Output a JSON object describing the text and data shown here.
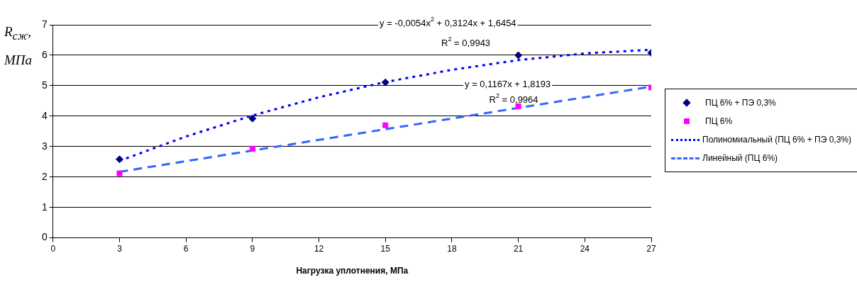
{
  "chart_data": {
    "type": "scatter",
    "xlabel": "Нагрузка уплотнения, МПа",
    "ylabel": "R$_{сж}$, МПа",
    "xlim": [
      0,
      27
    ],
    "xticks": [
      0,
      3,
      6,
      9,
      12,
      15,
      18,
      21,
      24,
      27
    ],
    "ylim": [
      0,
      7
    ],
    "yticks": [
      0,
      1,
      2,
      3,
      4,
      5,
      6,
      7
    ],
    "grid": "y",
    "legend": "right",
    "x": [
      3,
      9,
      15,
      21,
      27
    ],
    "series": [
      {
        "name": "ПЦ 6% + ПЭ 0,3%",
        "type": "scatter",
        "marker": "diamond",
        "color": "#000080",
        "values": [
          2.58,
          3.92,
          5.11,
          6.0,
          6.08
        ]
      },
      {
        "name": "ПЦ 6%",
        "type": "scatter",
        "marker": "square",
        "color": "#ff00ff",
        "values": [
          2.12,
          2.93,
          3.7,
          4.32,
          4.94
        ]
      },
      {
        "name": "Полиномиальный (ПЦ 6% + ПЭ 0,3%)",
        "type": "line",
        "marker": "none",
        "line_style": "dotted",
        "color": "#0000ff",
        "x": [
          3,
          6,
          9,
          12,
          15,
          18,
          21,
          24,
          27
        ],
        "values": [
          2.53,
          3.33,
          4.02,
          4.62,
          5.12,
          5.52,
          5.84,
          6.06,
          6.18
        ]
      },
      {
        "name": "Линейный (ПЦ 6%)",
        "type": "line",
        "marker": "none",
        "line_style": "dashed",
        "color": "#3366ff",
        "x": [
          3,
          27
        ],
        "values": [
          2.17,
          4.97
        ]
      }
    ],
    "annotations": [
      "y = -0,0054x$^{2}$ + 0,3124x + 1,6454",
      "R$^{2}$ = 0,9943",
      "y = 0,1167x + 1,8193",
      "R$^{2}$ = 0,9964"
    ]
  }
}
